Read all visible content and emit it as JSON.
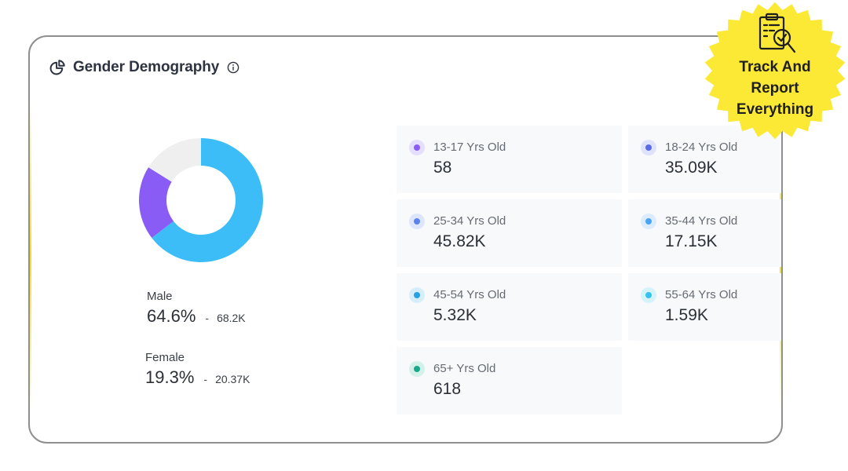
{
  "card": {
    "title": "Gender Demography",
    "icon": "pie-chart-icon",
    "info_icon": "info-icon"
  },
  "donut": {
    "segments": [
      {
        "name": "Male",
        "value": 64.6,
        "color": "#3dbdf7"
      },
      {
        "name": "Female",
        "value": 19.3,
        "color": "#8a5cf6"
      },
      {
        "name": "other",
        "value": 16.1,
        "color": "#efeff0"
      }
    ]
  },
  "gender": [
    {
      "label": "Male",
      "percent": "64.6%",
      "dash": "-",
      "count": "68.2K"
    },
    {
      "label": "Female",
      "percent": "19.3%",
      "dash": "-",
      "count": "20.37K"
    }
  ],
  "age_groups": [
    {
      "label": "13-17 Yrs Old",
      "value": "58",
      "color": "#8b5cf6",
      "ring": "#e6defd"
    },
    {
      "label": "18-24 Yrs Old",
      "value": "35.09K",
      "color": "#5b6be6",
      "ring": "#dfe2fb"
    },
    {
      "label": "25-34 Yrs Old",
      "value": "45.82K",
      "color": "#5b83f0",
      "ring": "#dde6fc"
    },
    {
      "label": "35-44 Yrs Old",
      "value": "17.15K",
      "color": "#4ba3f3",
      "ring": "#dcecfc"
    },
    {
      "label": "45-54 Yrs Old",
      "value": "5.32K",
      "color": "#2c9fe0",
      "ring": "#d6eefb"
    },
    {
      "label": "55-64 Yrs Old",
      "value": "1.59K",
      "color": "#33c3ec",
      "ring": "#d6f3fb"
    },
    {
      "label": "65+ Yrs Old",
      "value": "618",
      "color": "#18a889",
      "ring": "#d3f1e8"
    }
  ],
  "badge": {
    "line1": "Track And",
    "line2": "Report",
    "line3": "Everything",
    "icon": "clipboard-search-icon",
    "color": "#fce936"
  }
}
